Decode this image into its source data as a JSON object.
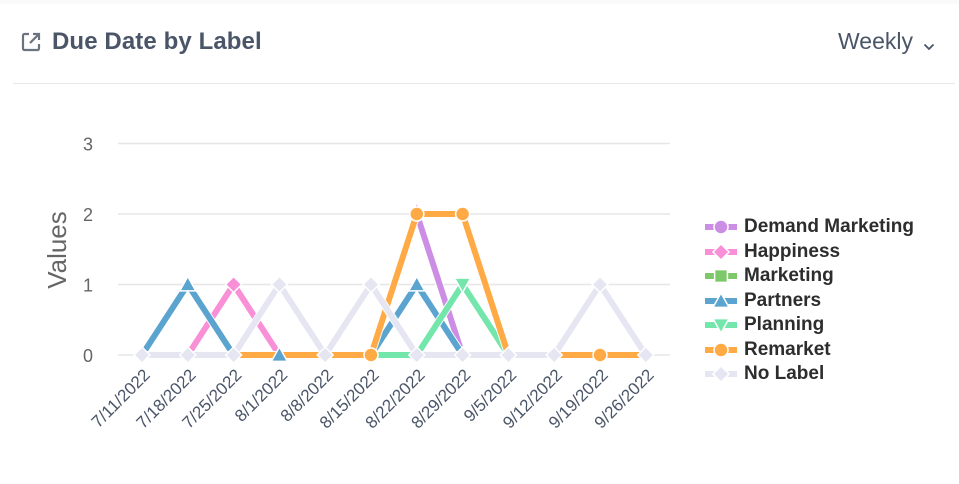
{
  "header": {
    "title": "Due Date by Label",
    "title_icon": "external-link-icon",
    "period_selector": {
      "value": "Weekly",
      "icon": "chevron-down-icon"
    }
  },
  "chart_data": {
    "type": "line",
    "title": "Due Date by Label",
    "xlabel": "",
    "ylabel": "Values",
    "ylim": [
      0,
      3
    ],
    "yticks": [
      0,
      1,
      2,
      3
    ],
    "grid": true,
    "legend_position": "right",
    "categories": [
      "7/11/2022",
      "7/18/2022",
      "7/25/2022",
      "8/1/2022",
      "8/8/2022",
      "8/15/2022",
      "8/22/2022",
      "8/29/2022",
      "9/5/2022",
      "9/12/2022",
      "9/19/2022",
      "9/26/2022"
    ],
    "series": [
      {
        "name": "Demand Marketing",
        "color": "#cc8ee4",
        "marker": "circle",
        "values": [
          0,
          0,
          0,
          0,
          0,
          0,
          2,
          0,
          0,
          0,
          0,
          0
        ]
      },
      {
        "name": "Happiness",
        "color": "#f98fd6",
        "marker": "diamond",
        "values": [
          0,
          0,
          1,
          0,
          0,
          0,
          0,
          0,
          0,
          0,
          0,
          0
        ]
      },
      {
        "name": "Marketing",
        "color": "#7dc96a",
        "marker": "square",
        "values": [
          0,
          0,
          0,
          0,
          0,
          0,
          0,
          0,
          0,
          0,
          0,
          0
        ]
      },
      {
        "name": "Partners",
        "color": "#5ba4cf",
        "marker": "triangle-up",
        "values": [
          0,
          1,
          0,
          0,
          0,
          0,
          1,
          0,
          0,
          0,
          0,
          0
        ]
      },
      {
        "name": "Planning",
        "color": "#72e6ab",
        "marker": "triangle-down",
        "values": [
          0,
          0,
          0,
          0,
          0,
          0,
          0,
          1,
          0,
          0,
          0,
          0
        ]
      },
      {
        "name": "Remarket",
        "color": "#ffaa45",
        "marker": "circle",
        "values": [
          0,
          0,
          0,
          0,
          0,
          0,
          2,
          2,
          0,
          0,
          0,
          0
        ]
      },
      {
        "name": "No Label",
        "color": "#e6e6f2",
        "marker": "diamond",
        "values": [
          0,
          0,
          0,
          1,
          0,
          1,
          0,
          0,
          0,
          0,
          1,
          0
        ]
      }
    ]
  }
}
